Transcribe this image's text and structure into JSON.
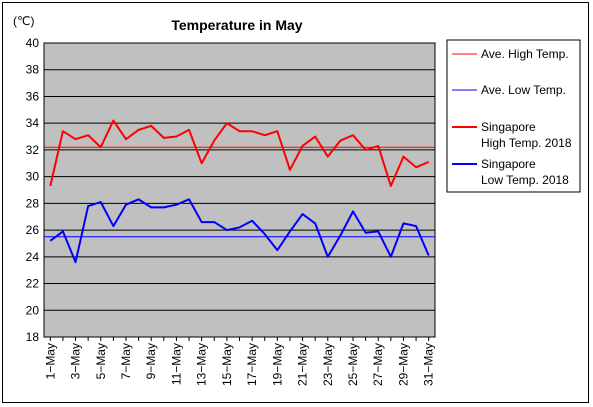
{
  "chart_data": {
    "type": "line",
    "title": "Temperature in May",
    "unit_label": "(℃)",
    "ylim": [
      18,
      40
    ],
    "y_ticks": [
      "18",
      "20",
      "22",
      "24",
      "26",
      "28",
      "30",
      "32",
      "34",
      "36",
      "38",
      "40"
    ],
    "x_ticks": [
      "1−May",
      "3−May",
      "5−May",
      "7−May",
      "9−May",
      "11−May",
      "13−May",
      "15−May",
      "17−May",
      "19−May",
      "21−May",
      "23−May",
      "25−May",
      "27−May",
      "29−May",
      "31−May"
    ],
    "days": [
      1,
      2,
      3,
      4,
      5,
      6,
      7,
      8,
      9,
      10,
      11,
      12,
      13,
      14,
      15,
      16,
      17,
      18,
      19,
      20,
      21,
      22,
      23,
      24,
      25,
      26,
      27,
      28,
      29,
      30,
      31
    ],
    "series": [
      {
        "name": "Ave. High Temp.",
        "color": "#ff0000",
        "width": 1,
        "constant": 32.2
      },
      {
        "name": "Ave. Low Temp.",
        "color": "#0000ff",
        "width": 1,
        "constant": 25.5
      },
      {
        "name": "Singapore\nHigh Temp. 2018",
        "color": "#ff0000",
        "width": 2,
        "values": [
          29.3,
          33.4,
          32.8,
          33.1,
          32.2,
          34.2,
          32.8,
          33.5,
          33.8,
          32.9,
          33.0,
          33.5,
          31.0,
          32.7,
          34.0,
          33.4,
          33.4,
          33.1,
          33.4,
          30.5,
          32.3,
          33.0,
          31.5,
          32.7,
          33.1,
          32.0,
          32.3,
          29.3,
          31.5,
          30.7,
          31.1
        ]
      },
      {
        "name": "Singapore\nLow Temp. 2018",
        "color": "#0000ff",
        "width": 2,
        "values": [
          25.2,
          25.9,
          23.6,
          27.8,
          28.1,
          26.3,
          27.9,
          28.3,
          27.7,
          27.7,
          27.9,
          28.3,
          26.6,
          26.6,
          26.0,
          26.2,
          26.7,
          25.7,
          24.5,
          25.9,
          27.2,
          26.5,
          24.0,
          25.6,
          27.4,
          25.8,
          25.9,
          24.0,
          26.5,
          26.3,
          24.1
        ]
      }
    ],
    "grid": true,
    "legend_position": "right"
  }
}
